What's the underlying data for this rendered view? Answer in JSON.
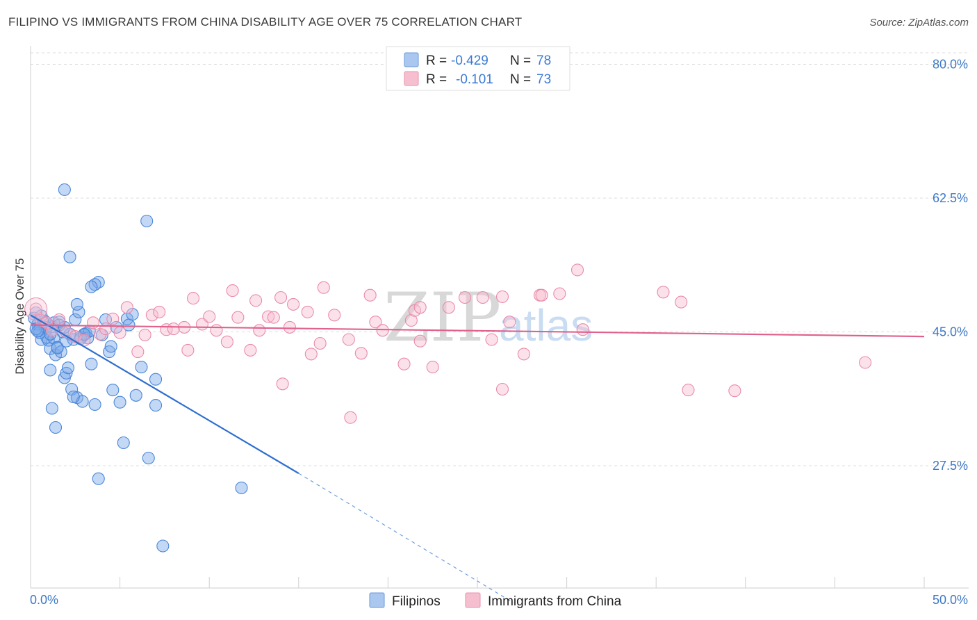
{
  "header": {
    "title": "FILIPINO VS IMMIGRANTS FROM CHINA DISABILITY AGE OVER 75 CORRELATION CHART",
    "source": "Source: ZipAtlas.com"
  },
  "legend": {
    "r_label": "R =",
    "n_label": "N =",
    "rows": [
      {
        "r": "-0.429",
        "n": "78",
        "color": "#a9c7ef"
      },
      {
        "r": "-0.101",
        "n": "73",
        "color": "#f6bfd0"
      }
    ]
  },
  "watermark": {
    "zip": "ZIP",
    "atlas": "atlas"
  },
  "chart_data": {
    "type": "scatter",
    "title": "FILIPINO VS IMMIGRANTS FROM CHINA DISABILITY AGE OVER 75 CORRELATION CHART",
    "xlabel": "",
    "ylabel": "Disability Age Over 75",
    "xlim": [
      0,
      50
    ],
    "ylim": [
      11.5,
      81.5
    ],
    "x_tick_labels": [
      "0.0%",
      "50.0%"
    ],
    "y_ticks": [
      27.5,
      45.0,
      62.5,
      80.0
    ],
    "y_tick_labels": [
      "27.5%",
      "45.0%",
      "62.5%",
      "80.0%"
    ],
    "grid": true,
    "legend_position": "top-center",
    "series": [
      {
        "name": "Filipinos",
        "color": "#7aa8e8",
        "stroke": "#4a86d8",
        "trend": {
          "x": [
            0.0,
            15.0
          ],
          "y": [
            47.2,
            26.5
          ],
          "dashed_to": [
            27.0,
            9.6
          ]
        },
        "points": [
          [
            0.3,
            47.5
          ],
          [
            0.4,
            46.0
          ],
          [
            0.5,
            45.2
          ],
          [
            0.6,
            44.0
          ],
          [
            0.7,
            46.3
          ],
          [
            0.8,
            45.6
          ],
          [
            0.9,
            44.3
          ],
          [
            1.0,
            43.9
          ],
          [
            1.1,
            42.8
          ],
          [
            1.2,
            45.7
          ],
          [
            1.3,
            44.2
          ],
          [
            1.4,
            42.0
          ],
          [
            1.5,
            43.0
          ],
          [
            1.6,
            46.3
          ],
          [
            1.7,
            42.4
          ],
          [
            1.8,
            45.0
          ],
          [
            1.9,
            39.0
          ],
          [
            2.0,
            39.6
          ],
          [
            2.1,
            40.3
          ],
          [
            2.2,
            44.7
          ],
          [
            2.3,
            37.5
          ],
          [
            2.4,
            44.0
          ],
          [
            2.5,
            46.6
          ],
          [
            2.6,
            36.4
          ],
          [
            2.7,
            47.6
          ],
          [
            2.8,
            44.3
          ],
          [
            2.9,
            35.9
          ],
          [
            3.0,
            44.6
          ],
          [
            3.1,
            44.8
          ],
          [
            3.2,
            44.2
          ],
          [
            3.4,
            40.8
          ],
          [
            3.6,
            35.5
          ],
          [
            3.8,
            51.5
          ],
          [
            4.0,
            44.6
          ],
          [
            4.2,
            46.6
          ],
          [
            4.4,
            42.4
          ],
          [
            4.5,
            43.1
          ],
          [
            4.6,
            37.4
          ],
          [
            4.8,
            45.6
          ],
          [
            5.0,
            35.8
          ],
          [
            5.2,
            30.5
          ],
          [
            5.4,
            46.7
          ],
          [
            5.5,
            45.9
          ],
          [
            5.7,
            47.3
          ],
          [
            5.9,
            36.7
          ],
          [
            6.2,
            40.4
          ],
          [
            6.5,
            59.5
          ],
          [
            6.6,
            28.5
          ],
          [
            7.0,
            35.4
          ],
          [
            7.0,
            38.8
          ],
          [
            7.4,
            17.0
          ],
          [
            11.8,
            24.6
          ],
          [
            1.2,
            35.0
          ],
          [
            1.4,
            32.5
          ],
          [
            2.2,
            54.8
          ],
          [
            3.6,
            51.2
          ],
          [
            1.9,
            63.6
          ],
          [
            3.4,
            50.9
          ],
          [
            3.8,
            25.8
          ],
          [
            1.1,
            40.0
          ],
          [
            2.4,
            36.5
          ],
          [
            0.5,
            44.9
          ],
          [
            0.8,
            46.4
          ],
          [
            1.3,
            46.2
          ],
          [
            1.6,
            45.9
          ],
          [
            2.8,
            44.1
          ],
          [
            3.3,
            45.1
          ],
          [
            0.2,
            46.8
          ],
          [
            0.6,
            47.1
          ],
          [
            0.9,
            45.6
          ],
          [
            1.1,
            44.7
          ],
          [
            1.5,
            42.9
          ],
          [
            1.9,
            45.6
          ],
          [
            2.6,
            48.6
          ],
          [
            0.3,
            45.4
          ],
          [
            2.0,
            43.8
          ],
          [
            3.0,
            44.7
          ],
          [
            0.4,
            45.1
          ]
        ]
      },
      {
        "name": "Immigrants from China",
        "color": "#f6bfd0",
        "stroke": "#ea8aaa",
        "trend": {
          "x": [
            0.0,
            50.0
          ],
          "y": [
            45.9,
            44.4
          ]
        },
        "points": [
          [
            0.3,
            48.0
          ],
          [
            0.6,
            46.5
          ],
          [
            0.9,
            46.2
          ],
          [
            1.2,
            45.2
          ],
          [
            1.6,
            46.6
          ],
          [
            2.0,
            45.0
          ],
          [
            2.5,
            44.4
          ],
          [
            3.0,
            43.9
          ],
          [
            3.5,
            46.2
          ],
          [
            3.9,
            44.7
          ],
          [
            4.2,
            45.4
          ],
          [
            4.6,
            46.7
          ],
          [
            5.0,
            44.9
          ],
          [
            5.4,
            48.2
          ],
          [
            6.0,
            42.4
          ],
          [
            6.4,
            44.6
          ],
          [
            6.8,
            47.2
          ],
          [
            7.2,
            47.6
          ],
          [
            7.6,
            45.3
          ],
          [
            8.0,
            45.4
          ],
          [
            8.6,
            45.6
          ],
          [
            8.8,
            42.6
          ],
          [
            9.1,
            49.4
          ],
          [
            9.6,
            46.0
          ],
          [
            10.0,
            47.0
          ],
          [
            10.4,
            45.2
          ],
          [
            11.0,
            43.7
          ],
          [
            11.3,
            50.4
          ],
          [
            11.6,
            46.9
          ],
          [
            12.3,
            42.6
          ],
          [
            12.6,
            49.1
          ],
          [
            12.8,
            45.2
          ],
          [
            13.3,
            47.0
          ],
          [
            13.6,
            46.9
          ],
          [
            14.0,
            49.5
          ],
          [
            14.1,
            38.2
          ],
          [
            14.5,
            45.6
          ],
          [
            14.7,
            48.6
          ],
          [
            15.5,
            47.6
          ],
          [
            15.7,
            42.1
          ],
          [
            16.2,
            43.5
          ],
          [
            16.4,
            50.8
          ],
          [
            17.0,
            47.2
          ],
          [
            17.8,
            44.0
          ],
          [
            17.9,
            33.8
          ],
          [
            18.5,
            42.2
          ],
          [
            19.0,
            49.8
          ],
          [
            19.3,
            46.3
          ],
          [
            19.7,
            45.2
          ],
          [
            20.9,
            40.8
          ],
          [
            21.3,
            46.5
          ],
          [
            21.5,
            47.8
          ],
          [
            21.8,
            43.8
          ],
          [
            22.5,
            40.4
          ],
          [
            23.4,
            48.2
          ],
          [
            24.3,
            49.5
          ],
          [
            25.3,
            49.5
          ],
          [
            25.8,
            44.0
          ],
          [
            26.4,
            37.5
          ],
          [
            26.8,
            46.3
          ],
          [
            26.4,
            49.6
          ],
          [
            27.6,
            42.1
          ],
          [
            28.5,
            49.8
          ],
          [
            29.6,
            50.0
          ],
          [
            30.6,
            53.1
          ],
          [
            30.9,
            45.3
          ],
          [
            35.4,
            50.2
          ],
          [
            36.4,
            48.9
          ],
          [
            36.8,
            37.4
          ],
          [
            39.4,
            37.3
          ],
          [
            46.7,
            41.0
          ],
          [
            28.6,
            49.8
          ],
          [
            21.8,
            48.2
          ]
        ]
      }
    ]
  },
  "bottom_legend": {
    "items": [
      {
        "label": "Filipinos",
        "color": "#a9c7ef"
      },
      {
        "label": "Immigrants from China",
        "color": "#f6bfd0"
      }
    ]
  }
}
